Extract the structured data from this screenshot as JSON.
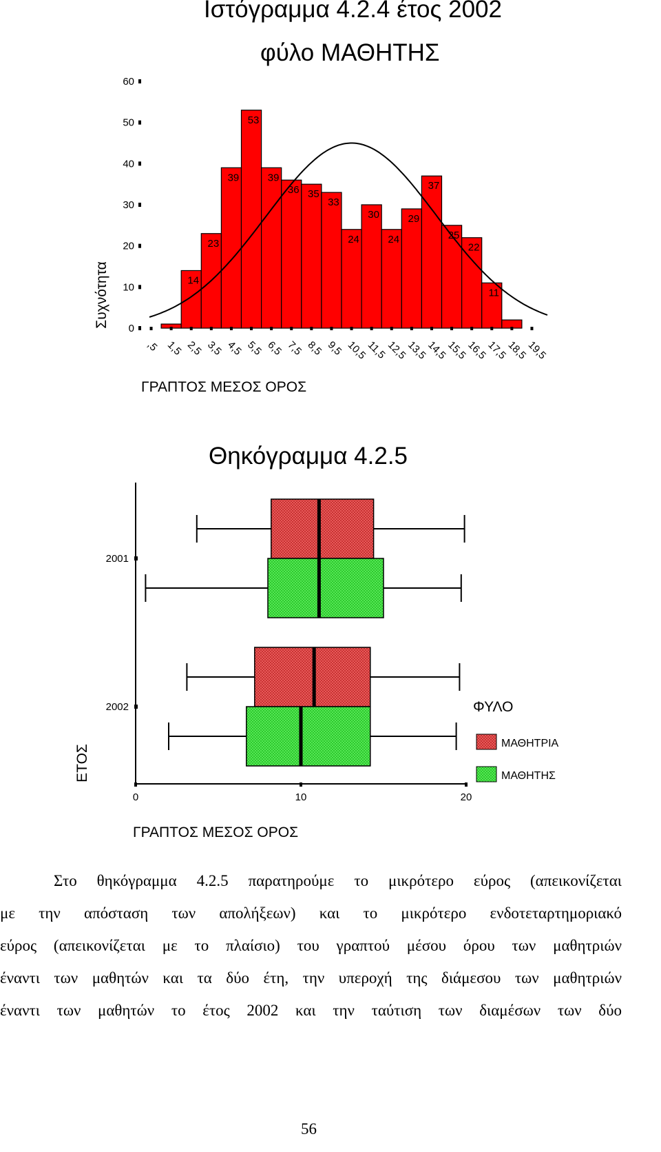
{
  "histogram": {
    "title_line1": "Ιστόγραμμα 4.2.4 έτος 2002",
    "title_line2": "φύλο ΜΑΘΗΤΗΣ",
    "ylabel": "Συχνότητα",
    "xlabel": "ΓΡΑΠΤΟΣ ΜΕΣΟΣ ΟΡΟΣ",
    "bar_color": "#ff0000"
  },
  "boxplot": {
    "title": "Θηκόγραμμα 4.2.5",
    "ylabel": "ΕΤΟΣ",
    "xlabel": "ΓΡΑΠΤΟΣ ΜΕΣΟΣ ΟΡΟΣ",
    "legend_title": "ΦΥΛΟ",
    "legend": [
      {
        "label": "ΜΑΘΗΤΡΙΑ",
        "color": "#e04a4a"
      },
      {
        "label": "ΜΑΘΗΤΗΣ",
        "color": "#44e044"
      }
    ]
  },
  "chart_data": [
    {
      "type": "bar",
      "title": "Ιστόγραμμα 4.2.4 έτος 2002",
      "subtitle": "φύλο ΜΑΘΗΤΗΣ",
      "xlabel": "ΓΡΑΠΤΟΣ ΜΕΣΟΣ ΟΡΟΣ",
      "ylabel": "Συχνότητα",
      "categories": [
        ",5",
        "1,5",
        "2,5",
        "3,5",
        "4,5",
        "5,5",
        "6,5",
        "7,5",
        "8,5",
        "9,5",
        "10,5",
        "11,5",
        "12,5",
        "13,5",
        "14,5",
        "15,5",
        "16,5",
        "17,5",
        "18,5",
        "19,5"
      ],
      "values": [
        0,
        1,
        14,
        23,
        39,
        53,
        39,
        36,
        35,
        33,
        24,
        30,
        24,
        29,
        37,
        25,
        22,
        11,
        2,
        0
      ],
      "data_labels": [
        "",
        "",
        "14",
        "23",
        "39",
        "53",
        "39",
        "36",
        "35",
        "33",
        "24",
        "30",
        "24",
        "29",
        "37",
        "25",
        "22",
        "11",
        "",
        ""
      ],
      "yticks": [
        0,
        10,
        20,
        30,
        40,
        50,
        60
      ],
      "ylim": [
        0,
        60
      ],
      "normal_curve": {
        "mean": 10.5,
        "sd": 4.25,
        "peak": 45
      }
    },
    {
      "type": "boxplot",
      "title": "Θηκόγραμμα 4.2.5",
      "xlabel": "ΓΡΑΠΤΟΣ ΜΕΣΟΣ ΟΡΟΣ",
      "ylabel": "ΕΤΟΣ",
      "xticks": [
        0,
        10,
        20
      ],
      "xlim": [
        0,
        20
      ],
      "categories": [
        "2001",
        "2002"
      ],
      "legend_title": "ΦΥΛΟ",
      "series": [
        {
          "name": "ΜΑΘΗΤΡΙΑ",
          "values": [
            {
              "year": "2001",
              "min": 3.7,
              "q1": 8.2,
              "median": 11.1,
              "q3": 14.4,
              "max": 19.9
            },
            {
              "year": "2002",
              "min": 3.1,
              "q1": 7.2,
              "median": 10.8,
              "q3": 14.2,
              "max": 19.6
            }
          ]
        },
        {
          "name": "ΜΑΘΗΤΗΣ",
          "values": [
            {
              "year": "2001",
              "min": 0.6,
              "q1": 8.0,
              "median": 11.1,
              "q3": 15.0,
              "max": 19.7
            },
            {
              "year": "2002",
              "min": 2.0,
              "q1": 6.7,
              "median": 10.0,
              "q3": 14.2,
              "max": 19.4
            }
          ]
        }
      ]
    }
  ],
  "paragraph": [
    "Στο θηκόγραμμα 4.2.5 παρατηρούμε το μικρότερο εύρος (απεικονίζεται",
    "με την απόσταση των απολήξεων) και το μικρότερο ενδοτεταρτημοριακό",
    "εύρος (απεικονίζεται με το πλαίσιο) του γραπτού μέσου όρου των μαθητριών",
    "έναντι των μαθητών και τα δύο έτη, την υπεροχή της διάμεσου των μαθητριών",
    "έναντι των μαθητών το έτος 2002 και την ταύτιση των διαμέσων των δύο"
  ],
  "page_number": "56"
}
